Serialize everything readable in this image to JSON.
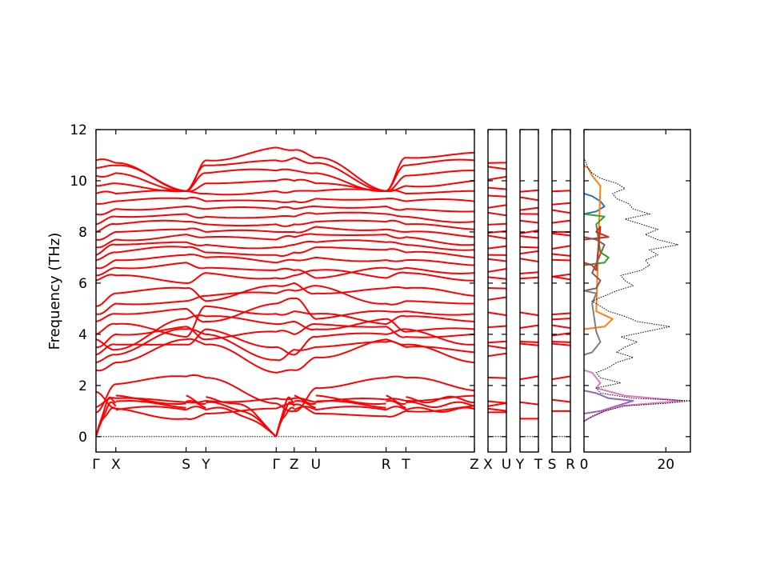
{
  "chart_data": {
    "type": "line",
    "ylabel": "Frequency (THz)",
    "ylim": [
      -0.6,
      12
    ],
    "yticks": [
      0,
      2,
      4,
      6,
      8,
      10,
      12
    ],
    "band_structure": {
      "segments": [
        {
          "from": "Γ",
          "to": "X",
          "range": [
            0,
            0.11
          ]
        },
        {
          "from": "X",
          "to": "S",
          "range": [
            0.11,
            0.46
          ]
        },
        {
          "from": "S",
          "to": "Y",
          "range": [
            0.46,
            0.57
          ]
        },
        {
          "from": "Y",
          "to": "Γ",
          "range": [
            0.57,
            1.0
          ]
        },
        {
          "from": "Γ",
          "to": "Z",
          "range": [
            1.0,
            1.1
          ]
        },
        {
          "from": "Z",
          "to": "U",
          "range": [
            1.1,
            1.21
          ]
        },
        {
          "from": "U",
          "to": "R",
          "range": [
            1.21,
            1.56
          ]
        },
        {
          "from": "R",
          "to": "T",
          "range": [
            1.56,
            1.67
          ]
        },
        {
          "from": "T",
          "to": "Z",
          "range": [
            1.67,
            2.1
          ]
        },
        {
          "from": "X",
          "to": "U",
          "range": [
            0,
            0.1
          ]
        },
        {
          "from": "Y",
          "to": "T",
          "range": [
            0,
            0.1
          ]
        },
        {
          "from": "S",
          "to": "R",
          "range": [
            0,
            0.1
          ]
        }
      ],
      "panels": [
        {
          "xlim": [
            0,
            2.1
          ],
          "labels": [
            {
              "text": "Γ",
              "x": 0
            },
            {
              "text": "X",
              "x": 0.11
            },
            {
              "text": "S",
              "x": 0.5
            },
            {
              "text": "Y",
              "x": 0.61
            },
            {
              "text": "Γ",
              "x": 1.0
            },
            {
              "text": "Z",
              "x": 1.1
            },
            {
              "text": "U",
              "x": 1.22
            },
            {
              "text": "R",
              "x": 1.61
            },
            {
              "text": "T",
              "x": 1.72
            },
            {
              "text": "Z",
              "x": 2.1
            }
          ]
        },
        {
          "xlim": [
            0,
            0.1
          ],
          "labels": [
            {
              "text": "X",
              "x": 0
            },
            {
              "text": "U",
              "x": 0.1
            }
          ]
        },
        {
          "xlim": [
            0,
            0.1
          ],
          "labels": [
            {
              "text": "Y",
              "x": 0
            },
            {
              "text": "T",
              "x": 0.1
            }
          ]
        },
        {
          "xlim": [
            0,
            0.1
          ],
          "labels": [
            {
              "text": "S",
              "x": 0
            },
            {
              "text": "R",
              "x": 0.1
            }
          ]
        }
      ],
      "series_color": "#ff0000",
      "zero_line_color": "#00008b",
      "acoustic_max_freq": [
        1.05,
        1.25,
        1.45
      ],
      "band_nodes_thz": [
        [
          0.95,
          2.05,
          2.35,
          2.3,
          1.3,
          1.0,
          1.9,
          2.3,
          2.3,
          1.8
        ],
        [
          1.15,
          1.5,
          1.35,
          1.4,
          1.5,
          1.5,
          1.35,
          1.45,
          1.4,
          1.6
        ],
        [
          1.75,
          1.1,
          0.7,
          0.9,
          1.1,
          1.25,
          0.9,
          0.8,
          1.0,
          1.2
        ],
        [
          2.6,
          2.9,
          3.8,
          3.6,
          2.5,
          2.6,
          3.1,
          3.8,
          3.6,
          2.9
        ],
        [
          2.9,
          3.2,
          4.2,
          4.0,
          3.0,
          3.4,
          3.5,
          3.7,
          3.5,
          3.3
        ],
        [
          3.2,
          3.6,
          3.6,
          4.2,
          3.5,
          3.2,
          3.9,
          4.0,
          4.2,
          3.6
        ],
        [
          3.5,
          4.0,
          4.3,
          3.8,
          4.1,
          4.0,
          4.4,
          4.3,
          3.9,
          4.0
        ],
        [
          3.8,
          3.4,
          4.6,
          4.7,
          4.4,
          4.5,
          4.2,
          4.6,
          4.1,
          4.2
        ],
        [
          4.0,
          4.4,
          3.9,
          5.1,
          4.8,
          4.9,
          4.8,
          4.4,
          4.7,
          4.5
        ],
        [
          4.5,
          4.8,
          5.0,
          4.5,
          5.2,
          5.4,
          4.6,
          4.9,
          4.9,
          4.8
        ],
        [
          4.8,
          5.2,
          5.3,
          5.5,
          5.6,
          5.7,
          5.9,
          5.2,
          5.3,
          5.2
        ],
        [
          5.1,
          5.6,
          5.8,
          5.3,
          5.9,
          6.0,
          5.6,
          5.8,
          5.8,
          5.5
        ],
        [
          6.1,
          6.3,
          6.0,
          6.4,
          6.2,
          6.3,
          6.5,
          6.2,
          6.4,
          6.1
        ],
        [
          6.3,
          6.6,
          6.8,
          6.6,
          6.5,
          6.5,
          6.2,
          6.6,
          6.6,
          6.4
        ],
        [
          6.6,
          6.9,
          7.1,
          7.0,
          6.8,
          6.9,
          7.0,
          6.9,
          6.9,
          6.7
        ],
        [
          6.9,
          7.2,
          7.4,
          7.2,
          7.1,
          7.2,
          7.4,
          7.3,
          7.2,
          7.0
        ],
        [
          7.1,
          7.5,
          7.6,
          7.5,
          7.4,
          7.5,
          7.6,
          7.6,
          7.5,
          7.3
        ],
        [
          7.4,
          7.7,
          7.9,
          7.8,
          7.7,
          7.8,
          7.9,
          7.9,
          7.8,
          7.5
        ],
        [
          7.7,
          8.0,
          8.1,
          8.0,
          8.0,
          8.0,
          8.2,
          8.1,
          8.0,
          7.8
        ],
        [
          8.0,
          8.3,
          8.4,
          8.3,
          8.3,
          8.3,
          8.4,
          8.4,
          8.3,
          8.1
        ],
        [
          8.3,
          8.6,
          8.7,
          8.6,
          8.6,
          8.6,
          8.7,
          8.7,
          8.6,
          8.4
        ],
        [
          8.7,
          8.9,
          9.0,
          8.9,
          8.9,
          8.9,
          9.0,
          9.0,
          8.9,
          8.8
        ],
        [
          9.1,
          9.2,
          9.3,
          9.2,
          9.2,
          9.2,
          9.3,
          9.3,
          9.2,
          9.2
        ],
        [
          9.5,
          9.5,
          9.6,
          9.5,
          9.6,
          9.6,
          9.6,
          9.6,
          9.5,
          9.6
        ],
        [
          9.8,
          9.9,
          9.6,
          9.9,
          10.0,
          10.0,
          9.9,
          9.6,
          9.8,
          10.0
        ],
        [
          10.2,
          10.3,
          9.6,
          10.3,
          10.4,
          10.4,
          10.3,
          9.6,
          10.2,
          10.4
        ],
        [
          10.5,
          10.6,
          9.6,
          10.6,
          10.8,
          10.9,
          10.7,
          9.6,
          10.6,
          10.8
        ],
        [
          10.8,
          10.7,
          9.6,
          10.8,
          11.3,
          11.2,
          10.9,
          9.6,
          10.9,
          11.1
        ]
      ],
      "small_panel_levels_thz": [
        [
          0.95,
          1.05,
          1.25,
          1.35,
          2.3,
          3.2,
          3.5,
          3.7,
          4.3,
          4.8,
          5.4,
          5.8,
          6.2,
          6.5,
          6.9,
          7.1,
          7.4,
          7.8,
          8.0,
          8.3,
          8.7,
          9.0,
          9.4,
          9.7,
          10.1,
          10.5,
          10.7
        ],
        [
          0.7,
          1.3,
          2.3,
          3.6,
          3.7,
          4.3,
          4.8,
          6.2,
          6.4,
          6.9,
          7.2,
          7.4,
          7.8,
          8.0,
          8.4,
          8.7,
          8.9,
          9.3,
          9.6
        ],
        [
          1.0,
          1.4,
          2.3,
          3.6,
          3.7,
          4.0,
          4.3,
          4.6,
          4.8,
          6.2,
          6.3,
          6.9,
          7.1,
          7.4,
          7.9,
          8.0,
          8.4,
          8.8,
          9.1,
          9.6
        ]
      ]
    },
    "dos": {
      "xlim": [
        0,
        26
      ],
      "xticks": [
        0,
        20
      ],
      "total": {
        "color": "#000000",
        "freq": [
          0.6,
          0.8,
          1.0,
          1.2,
          1.3,
          1.4,
          1.5,
          1.7,
          1.9,
          2.1,
          2.3,
          2.5,
          2.7,
          2.9,
          3.1,
          3.3,
          3.5,
          3.7,
          3.9,
          4.1,
          4.3,
          4.5,
          4.7,
          4.9,
          5.1,
          5.3,
          5.5,
          5.7,
          5.9,
          6.1,
          6.3,
          6.5,
          6.7,
          6.9,
          7.1,
          7.3,
          7.5,
          7.7,
          7.9,
          8.1,
          8.3,
          8.5,
          8.7,
          8.9,
          9.1,
          9.3,
          9.5,
          9.7,
          9.9,
          10.1,
          10.3,
          10.5,
          10.7,
          10.9
        ],
        "dos": [
          0,
          2,
          5,
          10,
          20,
          26,
          12,
          4,
          3,
          9,
          4,
          3,
          6,
          8,
          12,
          8,
          10,
          13,
          9,
          15,
          21,
          13,
          10,
          6,
          4,
          2,
          5,
          8,
          12,
          10,
          9,
          14,
          16,
          15,
          18,
          16,
          23,
          18,
          15,
          18,
          14,
          10,
          16,
          12,
          11,
          8,
          7,
          10,
          8,
          4,
          2,
          1,
          0.5,
          0
        ]
      },
      "projected": [
        {
          "color": "#1f77b4",
          "freq": [
            8.8,
            9.0,
            9.2,
            9.4
          ],
          "dos": [
            3,
            5,
            4,
            2
          ]
        },
        {
          "color": "#ff7f0e",
          "freq": [
            4.3,
            4.6,
            4.9,
            9.8,
            10.2,
            10.5
          ],
          "dos": [
            5,
            7,
            3,
            4,
            2,
            1
          ]
        },
        {
          "color": "#2ca02c",
          "freq": [
            6.8,
            7.0,
            7.2,
            8.3,
            8.6
          ],
          "dos": [
            5,
            6,
            4,
            3,
            5
          ]
        },
        {
          "color": "#d62728",
          "freq": [
            7.8,
            8.0,
            8.2,
            6.5,
            6.7
          ],
          "dos": [
            6,
            3,
            4,
            3,
            2
          ]
        },
        {
          "color": "#9467bd",
          "freq": [
            1.0,
            1.2,
            1.4,
            1.5,
            1.7
          ],
          "dos": [
            4,
            8,
            12,
            6,
            3
          ]
        },
        {
          "color": "#8c564b",
          "freq": [
            5.8,
            6.1,
            6.4,
            7.5,
            7.7
          ],
          "dos": [
            3,
            4,
            2,
            5,
            3
          ]
        },
        {
          "color": "#e377c2",
          "freq": [
            0.7,
            1.0,
            1.2,
            1.4,
            1.6,
            1.9,
            2.1,
            2.3,
            2.5
          ],
          "dos": [
            1,
            5,
            9,
            24,
            10,
            3,
            4,
            3,
            2
          ]
        },
        {
          "color": "#7f7f7f",
          "freq": [
            3.3,
            3.7,
            4.1,
            5.2,
            5.6
          ],
          "dos": [
            2,
            4,
            3,
            2,
            3
          ]
        }
      ]
    }
  }
}
